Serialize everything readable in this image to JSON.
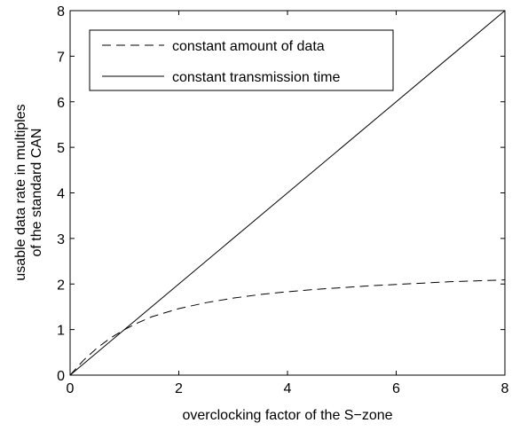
{
  "chart_data": {
    "type": "line",
    "title": "",
    "xlabel": "overclocking factor of the S−zone",
    "ylabel_lines": [
      "usable data rate in multiples",
      "of the standard CAN"
    ],
    "xlim": [
      0,
      8
    ],
    "ylim": [
      0,
      8
    ],
    "xticks": [
      0,
      2,
      4,
      6,
      8
    ],
    "yticks": [
      0,
      1,
      2,
      3,
      4,
      5,
      6,
      7,
      8
    ],
    "grid": false,
    "legend_position": "top-left",
    "series": [
      {
        "name": "constant amount of data",
        "style": "dashed",
        "color": "#000000",
        "x": [
          0,
          0.25,
          0.5,
          0.75,
          1,
          1.25,
          1.5,
          2,
          2.5,
          3,
          3.5,
          4,
          4.5,
          5,
          5.5,
          6,
          6.5,
          7,
          7.5,
          8
        ],
        "y": [
          0,
          0.33,
          0.6,
          0.82,
          1.0,
          1.15,
          1.28,
          1.46,
          1.59,
          1.69,
          1.77,
          1.83,
          1.88,
          1.92,
          1.96,
          1.99,
          2.02,
          2.05,
          2.07,
          2.09
        ]
      },
      {
        "name": "constant transmission time",
        "style": "solid",
        "color": "#000000",
        "x": [
          0,
          8
        ],
        "y": [
          0,
          8
        ]
      }
    ]
  }
}
